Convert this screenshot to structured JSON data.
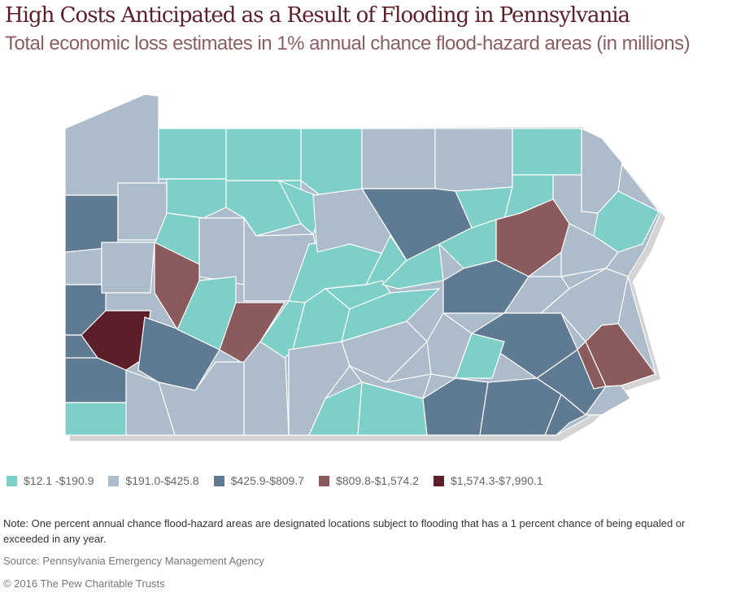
{
  "title": "High Costs Anticipated as a Result of Flooding in Pennsylvania",
  "subtitle": "Total economic loss estimates in 1% annual chance flood-hazard areas  (in millions)",
  "legend": [
    {
      "label": "$12.1 -$190.9",
      "color": "#7ecfc8"
    },
    {
      "label": "$191.0-$425.8",
      "color": "#adbcca"
    },
    {
      "label": "$425.9-$809.7",
      "color": "#5f7b93"
    },
    {
      "label": "$809.8-$1,574.2",
      "color": "#8b5a5c"
    },
    {
      "label": "$1,574.3-$7,990.1",
      "color": "#5c1f2a"
    }
  ],
  "county_tiers": [
    1,
    0,
    0,
    0,
    1,
    1,
    0,
    1,
    2,
    1,
    0,
    0,
    0,
    0,
    1,
    2,
    1,
    1,
    1,
    3,
    2,
    4,
    2,
    0,
    3,
    2,
    0,
    1,
    1,
    1,
    0,
    0,
    1,
    2,
    0,
    0,
    3,
    0,
    1,
    0,
    0,
    0,
    0,
    0,
    0,
    2,
    1,
    1,
    3,
    2,
    1,
    1,
    1,
    1,
    0,
    0,
    0,
    2,
    2,
    2,
    3,
    2,
    1
  ],
  "note": "Note: One percent annual chance flood-hazard areas are designated locations subject to flooding that has a 1 percent chance of being equaled or exceeded in any year.",
  "source": "Source: Pennsylvania Emergency Management Agency",
  "copyright": "© 2016 The Pew Charitable Trusts"
}
